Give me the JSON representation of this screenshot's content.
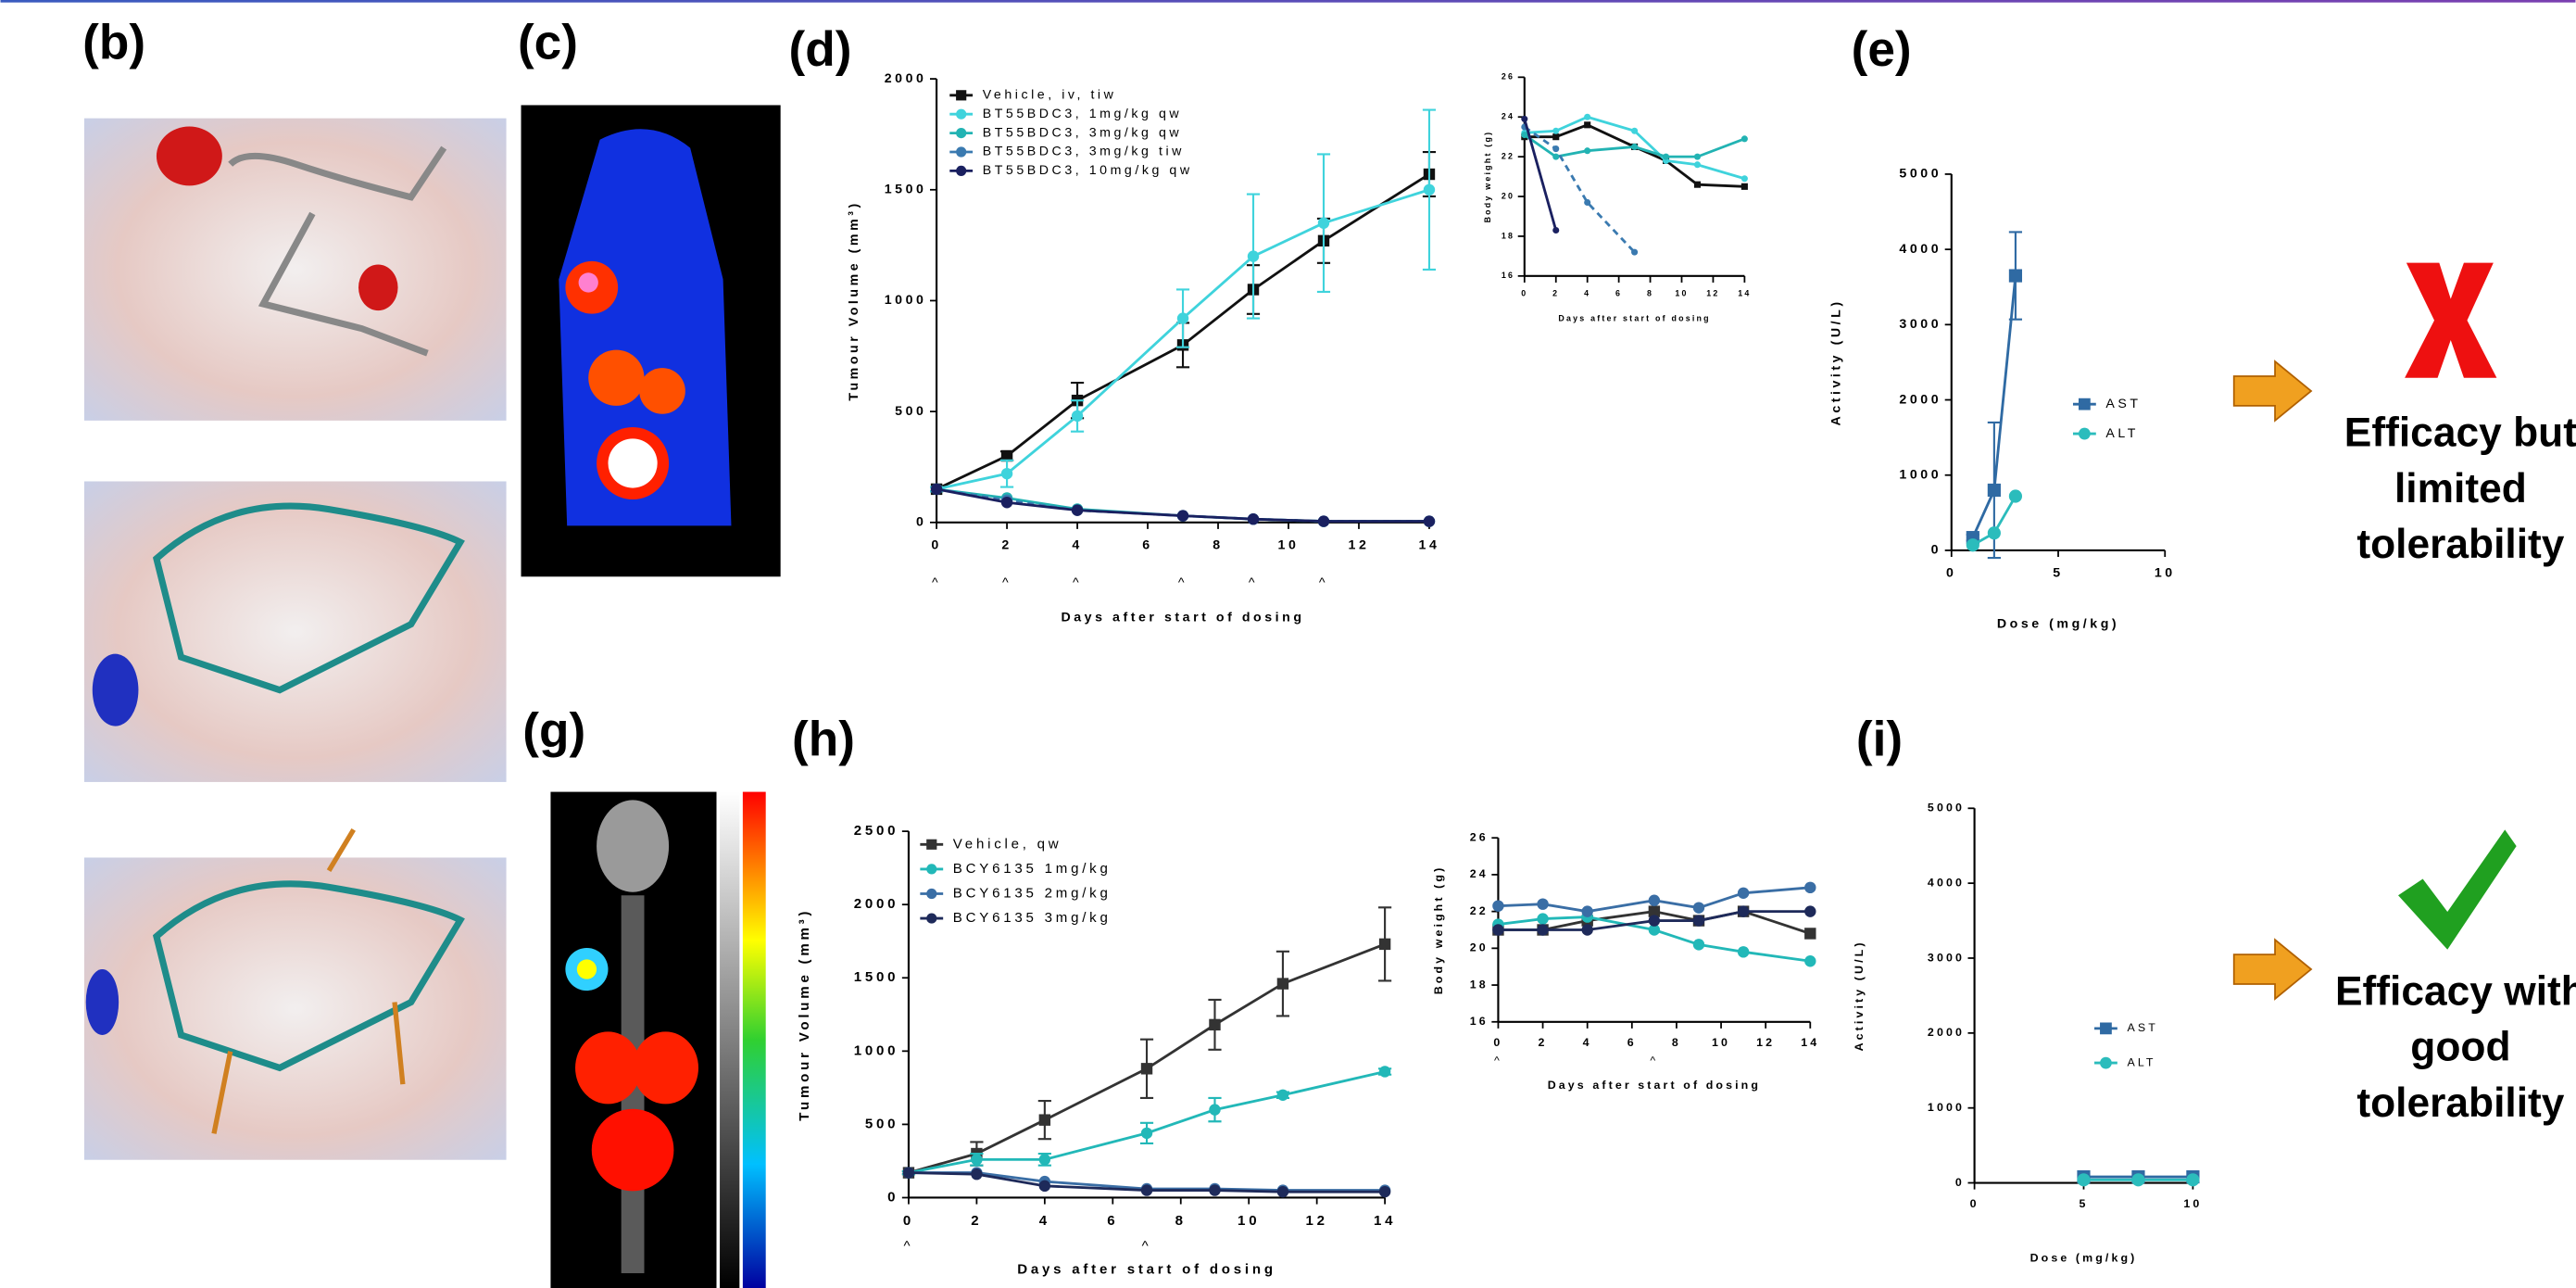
{
  "panels": [
    "(b)",
    "(c)",
    "(d)",
    "(e)",
    "(g)",
    "(h)",
    "(i)"
  ],
  "verdicts": [
    [
      "Efficacy but",
      "limited",
      "tolerability"
    ],
    [
      "Efficacy with",
      "good",
      "tolerability"
    ]
  ],
  "chart_data": [
    {
      "type": "line",
      "x_label": "Days after start of dosing",
      "y_label": "Tumour Volume (mm³)",
      "x": [
        0,
        2,
        4,
        7,
        9,
        11,
        14
      ],
      "xlim": [
        0,
        14
      ],
      "xticks": [
        0,
        2,
        4,
        6,
        8,
        10,
        12,
        14
      ],
      "ylim": [
        0,
        2000
      ],
      "yticks": [
        0,
        500,
        1000,
        1500,
        2000
      ],
      "dose_marks": {
        "label": "^",
        "x": [
          0,
          2,
          4,
          7,
          9,
          11
        ]
      },
      "series": [
        {
          "name": "Vehicle, iv, tiw",
          "color": "#111111",
          "marker": "square",
          "values": [
            150,
            300,
            550,
            800,
            1050,
            1270,
            1570
          ],
          "errors": [
            10,
            20,
            80,
            100,
            110,
            100,
            100
          ]
        },
        {
          "name": "BT55BDC3, 1mg/kg qw",
          "color": "#3fd3dc",
          "marker": "circle",
          "values": [
            150,
            220,
            480,
            920,
            1200,
            1350,
            1500
          ],
          "errors": [
            10,
            60,
            70,
            130,
            280,
            310,
            360
          ]
        },
        {
          "name": "BT55BDC3, 3mg/kg qw",
          "color": "#22b3b3",
          "marker": "circle",
          "values": [
            150,
            110,
            60,
            30,
            15,
            5,
            5
          ]
        },
        {
          "name": "BT55BDC3, 3mg/kg tiw",
          "color": "#3a7ab0",
          "marker": "circle",
          "dash": true,
          "values": [
            150,
            100,
            55,
            30,
            15,
            5,
            5
          ]
        },
        {
          "name": "BT55BDC3, 10mg/kg qw",
          "color": "#1a2060",
          "marker": "circle",
          "values": [
            150,
            90,
            55,
            30,
            15,
            5,
            5
          ]
        }
      ]
    },
    {
      "type": "line",
      "x_label": "Days after start of dosing",
      "y_label": "Body weight (g)",
      "x": [
        0,
        2,
        4,
        7,
        9,
        11,
        14
      ],
      "xlim": [
        0,
        14
      ],
      "xticks": [
        0,
        2,
        4,
        6,
        8,
        10,
        12,
        14
      ],
      "ylim": [
        16,
        26
      ],
      "yticks": [
        16,
        18,
        20,
        22,
        24,
        26
      ],
      "series": [
        {
          "name": "Vehicle, iv, tiw",
          "color": "#111111",
          "marker": "square",
          "values": [
            23,
            23,
            23.6,
            22.5,
            21.8,
            20.6,
            20.5
          ]
        },
        {
          "name": "BT55BDC3, 1mg/kg qw",
          "color": "#3fd3dc",
          "marker": "circle",
          "values": [
            23.2,
            23.3,
            24,
            23.3,
            21.8,
            21.6,
            20.9
          ]
        },
        {
          "name": "BT55BDC3, 3mg/kg qw",
          "color": "#22b3b3",
          "marker": "circle",
          "values": [
            23.1,
            22,
            22.3,
            22.5,
            22,
            22,
            22.9
          ]
        },
        {
          "name": "BT55BDC3, 3mg/kg tiw",
          "color": "#3a7ab0",
          "marker": "circle",
          "dash": true,
          "values": [
            23.5,
            22.4,
            19.7,
            17.2,
            null,
            null,
            null
          ]
        },
        {
          "name": "BT55BDC3, 10mg/kg qw",
          "color": "#1a2060",
          "marker": "circle",
          "values": [
            23.9,
            18.3,
            null,
            null,
            null,
            null,
            null
          ]
        }
      ]
    },
    {
      "type": "line",
      "x_label": "Dose (mg/kg)",
      "y_label": "Activity (U/L)",
      "x": [
        1,
        2,
        3
      ],
      "xlim": [
        0,
        10
      ],
      "xticks": [
        0,
        5,
        10
      ],
      "ylim": [
        0,
        5000
      ],
      "yticks": [
        0,
        1000,
        2000,
        3000,
        4000,
        5000
      ],
      "series": [
        {
          "name": "AST",
          "color": "#2f6aa3",
          "marker": "square",
          "values": [
            170,
            800,
            3650
          ],
          "errors": [
            40,
            900,
            580
          ]
        },
        {
          "name": "ALT",
          "color": "#2bbcbc",
          "marker": "circle",
          "values": [
            70,
            230,
            720
          ]
        }
      ]
    },
    {
      "type": "line",
      "x_label": "Days after start of dosing",
      "y_label": "Tumour Volume (mm³)",
      "x": [
        0,
        2,
        4,
        7,
        9,
        11,
        14
      ],
      "xlim": [
        0,
        14
      ],
      "xticks": [
        0,
        2,
        4,
        6,
        8,
        10,
        12,
        14
      ],
      "ylim": [
        0,
        2500
      ],
      "yticks": [
        0,
        500,
        1000,
        1500,
        2000,
        2500
      ],
      "dose_marks": {
        "label": "^",
        "x": [
          0,
          7
        ]
      },
      "series": [
        {
          "name": "Vehicle, qw",
          "color": "#333333",
          "marker": "square",
          "values": [
            170,
            300,
            530,
            880,
            1180,
            1460,
            1730
          ],
          "errors": [
            10,
            80,
            130,
            200,
            170,
            220,
            250
          ]
        },
        {
          "name": "BCY6135 1mg/kg",
          "color": "#22b8b8",
          "marker": "circle",
          "values": [
            170,
            260,
            260,
            440,
            600,
            700,
            860
          ],
          "errors": [
            10,
            40,
            40,
            70,
            80,
            20,
            20
          ]
        },
        {
          "name": "BCY6135 2mg/kg",
          "color": "#3a6ea5",
          "marker": "circle",
          "values": [
            170,
            170,
            110,
            60,
            60,
            50,
            50
          ]
        },
        {
          "name": "BCY6135 3mg/kg",
          "color": "#1e2a5a",
          "marker": "circle",
          "values": [
            170,
            160,
            80,
            50,
            50,
            40,
            40
          ]
        }
      ]
    },
    {
      "type": "line",
      "x_label": "Days after start of dosing",
      "y_label": "Body weight (g)",
      "x": [
        0,
        2,
        4,
        7,
        9,
        11,
        14
      ],
      "xlim": [
        0,
        14
      ],
      "xticks": [
        0,
        2,
        4,
        6,
        8,
        10,
        12,
        14
      ],
      "ylim": [
        16,
        26
      ],
      "yticks": [
        16,
        18,
        20,
        22,
        24,
        26
      ],
      "dose_marks": {
        "label": "^",
        "x": [
          0,
          7
        ]
      },
      "series": [
        {
          "name": "Vehicle, qw",
          "color": "#333333",
          "marker": "square",
          "values": [
            21,
            21,
            21.5,
            22,
            21.5,
            22,
            20.8
          ]
        },
        {
          "name": "BCY6135 1mg/kg",
          "color": "#22b8b8",
          "marker": "circle",
          "values": [
            21.3,
            21.6,
            21.7,
            21,
            20.2,
            19.8,
            19.3
          ]
        },
        {
          "name": "BCY6135 2mg/kg",
          "color": "#3a6ea5",
          "marker": "circle",
          "values": [
            22.3,
            22.4,
            22,
            22.6,
            22.2,
            23,
            23.3
          ]
        },
        {
          "name": "BCY6135 3mg/kg",
          "color": "#1e2a5a",
          "marker": "circle",
          "values": [
            21,
            21,
            21,
            21.5,
            21.5,
            22,
            22
          ]
        }
      ]
    },
    {
      "type": "line",
      "x_label": "Dose (mg/kg)",
      "y_label": "Activity (U/L)",
      "x": [
        5,
        7.5,
        10
      ],
      "xlim": [
        0,
        10
      ],
      "xticks": [
        0,
        5,
        10
      ],
      "ylim": [
        0,
        5000
      ],
      "yticks": [
        0,
        1000,
        2000,
        3000,
        4000,
        5000
      ],
      "series": [
        {
          "name": "AST",
          "color": "#2f6aa3",
          "marker": "square",
          "values": [
            80,
            80,
            80
          ]
        },
        {
          "name": "ALT",
          "color": "#2bbcbc",
          "marker": "circle",
          "values": [
            40,
            40,
            40
          ]
        }
      ]
    }
  ]
}
